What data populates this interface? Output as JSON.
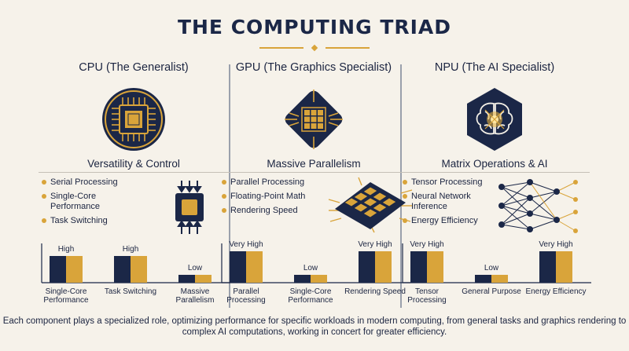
{
  "title": "THE COMPUTING TRIAD",
  "colors": {
    "navy": "#1b2747",
    "gold": "#d9a43a",
    "background": "#f6f2ea"
  },
  "columns": [
    {
      "heading": "CPU (The Generalist)",
      "icon": "cpu-chip-icon",
      "subtitle": "Versatility & Control",
      "features": [
        "Serial Processing",
        "Single-Core Performance",
        "Task Switching"
      ],
      "feature_art": "single-core-chip-icon",
      "chart_data": {
        "type": "bar",
        "categories": [
          "Single-Core Performance",
          "Task Switching",
          "Massive Parallelism"
        ],
        "levels": [
          "High",
          "High",
          "Low"
        ],
        "values": [
          0.85,
          0.85,
          0.25
        ]
      }
    },
    {
      "heading": "GPU (The Graphics Specialist)",
      "icon": "gpu-grid-icon",
      "subtitle": "Massive Parallelism",
      "features": [
        "Parallel Processing",
        "Floating-Point Math",
        "Rendering Speed"
      ],
      "feature_art": "multi-core-grid-icon",
      "chart_data": {
        "type": "bar",
        "categories": [
          "Parallel Processing",
          "Single-Core Performance",
          "Rendering Speed"
        ],
        "levels": [
          "Very High",
          "Low",
          "Very High"
        ],
        "values": [
          1.0,
          0.25,
          1.0
        ]
      }
    },
    {
      "heading": "NPU (The AI Specialist)",
      "icon": "brain-chip-icon",
      "subtitle": "Matrix Operations & AI",
      "features": [
        "Tensor Processing",
        "Neural Network Inference",
        "Energy Efficiency"
      ],
      "feature_art": "neural-network-icon",
      "chart_data": {
        "type": "bar",
        "categories": [
          "Tensor Processing",
          "General Purpose",
          "Energy Efficiency"
        ],
        "levels": [
          "Very High",
          "Low",
          "Very High"
        ],
        "values": [
          1.0,
          0.25,
          1.0
        ]
      }
    }
  ],
  "footer": "Each component plays a specialized role, optimizing performance for specific workloads in modern computing, from general tasks and graphics rendering to complex AI computations, working in concert for greater efficiency."
}
